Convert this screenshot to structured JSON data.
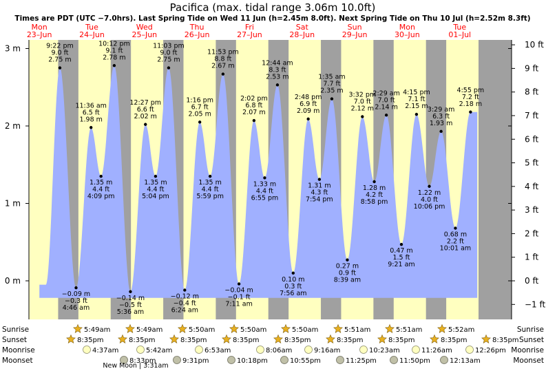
{
  "title": "Pacifica (max. tidal range 3.06m 10.0ft)",
  "subtitle": "Times are PDT (UTC −7.0hrs). Last Spring Tide on Wed 11 Jun (h=2.45m 8.0ft). Next Spring Tide on Thu 10 Jul (h=2.52m 8.3ft)",
  "colors": {
    "day": "#ffffc0",
    "night": "#a0a0a0",
    "water": "#a0b0ff",
    "red_text": "#ff0000",
    "sun_icon": "#e8b020",
    "moon_icon": "#ffffc0"
  },
  "chart_data": {
    "type": "area",
    "title": "Pacifica (max. tidal range 3.06m 10.0ft)",
    "y_left_ticks": [
      "3 m",
      "2 m",
      "1 m",
      "0 m"
    ],
    "y_right_ticks": [
      "10 ft",
      "9 ft",
      "8 ft",
      "7 ft",
      "6 ft",
      "5 ft",
      "4 ft",
      "3 ft",
      "2 ft",
      "1 ft",
      "0 ft",
      "−1 ft"
    ],
    "days": [
      {
        "dow": "Mon",
        "date": "23–Jun"
      },
      {
        "dow": "Tue",
        "date": "24–Jun"
      },
      {
        "dow": "Wed",
        "date": "25–Jun"
      },
      {
        "dow": "Thu",
        "date": "26–Jun"
      },
      {
        "dow": "Fri",
        "date": "27–Jun"
      },
      {
        "dow": "Sat",
        "date": "28–Jun"
      },
      {
        "dow": "Sun",
        "date": "29–Jun"
      },
      {
        "dow": "Mon",
        "date": "30–Jun"
      },
      {
        "dow": "Tue",
        "date": "01–Jul"
      }
    ],
    "series": [
      {
        "values": [
          {
            "time": "9:22 pm",
            "ft": "9.0 ft",
            "m": 2.75,
            "m_label": "2.75 m",
            "hour": 21.37,
            "high": true
          },
          {
            "time": "4:46 am",
            "ft": "−0.3 ft",
            "m": -0.09,
            "m_label": "−0.09 m",
            "hour": 28.77,
            "high": false
          },
          {
            "time": "11:36 am",
            "ft": "6.5 ft",
            "m": 1.98,
            "m_label": "1.98 m",
            "hour": 35.6,
            "high": true
          },
          {
            "time": "4:09 pm",
            "ft": "4.4 ft",
            "m": 1.35,
            "m_label": "1.35 m",
            "hour": 40.15,
            "high": false
          },
          {
            "time": "10:12 pm",
            "ft": "9.1 ft",
            "m": 2.78,
            "m_label": "2.78 m",
            "hour": 46.2,
            "high": true
          },
          {
            "time": "5:36 am",
            "ft": "−0.5 ft",
            "m": -0.14,
            "m_label": "−0.14 m",
            "hour": 53.6,
            "high": false
          },
          {
            "time": "12:27 pm",
            "ft": "6.6 ft",
            "m": 2.02,
            "m_label": "2.02 m",
            "hour": 60.45,
            "high": true
          },
          {
            "time": "5:04 pm",
            "ft": "4.4 ft",
            "m": 1.35,
            "m_label": "1.35 m",
            "hour": 65.07,
            "high": false
          },
          {
            "time": "11:03 pm",
            "ft": "9.0 ft",
            "m": 2.75,
            "m_label": "2.75 m",
            "hour": 71.05,
            "high": true
          },
          {
            "time": "6:24 am",
            "ft": "−0.4 ft",
            "m": -0.12,
            "m_label": "−0.12 m",
            "hour": 78.4,
            "high": false
          },
          {
            "time": "1:16 pm",
            "ft": "6.7 ft",
            "m": 2.05,
            "m_label": "2.05 m",
            "hour": 85.27,
            "high": true
          },
          {
            "time": "5:59 pm",
            "ft": "4.4 ft",
            "m": 1.35,
            "m_label": "1.35 m",
            "hour": 89.98,
            "high": false
          },
          {
            "time": "11:53 pm",
            "ft": "8.8 ft",
            "m": 2.67,
            "m_label": "2.67 m",
            "hour": 95.88,
            "high": true
          },
          {
            "time": "7:11 am",
            "ft": "−0.1 ft",
            "m": -0.04,
            "m_label": "−0.04 m",
            "hour": 103.18,
            "high": false
          },
          {
            "time": "2:02 pm",
            "ft": "6.8 ft",
            "m": 2.07,
            "m_label": "2.07 m",
            "hour": 110.03,
            "high": true
          },
          {
            "time": "6:55 pm",
            "ft": "4.4 ft",
            "m": 1.33,
            "m_label": "1.33 m",
            "hour": 114.92,
            "high": false
          },
          {
            "time": "12:44 am",
            "ft": "8.3 ft",
            "m": 2.53,
            "m_label": "2.53 m",
            "hour": 120.73,
            "high": true
          },
          {
            "time": "7:56 am",
            "ft": "0.3 ft",
            "m": 0.1,
            "m_label": "0.10 m",
            "hour": 127.93,
            "high": false
          },
          {
            "time": "2:48 pm",
            "ft": "6.9 ft",
            "m": 2.09,
            "m_label": "2.09 m",
            "hour": 134.8,
            "high": true
          },
          {
            "time": "7:54 pm",
            "ft": "4.3 ft",
            "m": 1.31,
            "m_label": "1.31 m",
            "hour": 139.9,
            "high": false
          },
          {
            "time": "1:35 am",
            "ft": "7.7 ft",
            "m": 2.35,
            "m_label": "2.35 m",
            "hour": 145.58,
            "high": true
          },
          {
            "time": "8:39 am",
            "ft": "0.9 ft",
            "m": 0.27,
            "m_label": "0.27 m",
            "hour": 152.65,
            "high": false
          },
          {
            "time": "3:32 pm",
            "ft": "7.0 ft",
            "m": 2.12,
            "m_label": "2.12 m",
            "hour": 159.53,
            "high": true
          },
          {
            "time": "8:58 pm",
            "ft": "4.2 ft",
            "m": 1.28,
            "m_label": "1.28 m",
            "hour": 164.97,
            "high": false
          },
          {
            "time": "2:29 am",
            "ft": "7.0 ft",
            "m": 2.14,
            "m_label": "2.14 m",
            "hour": 170.48,
            "high": true
          },
          {
            "time": "9:21 am",
            "ft": "1.5 ft",
            "m": 0.47,
            "m_label": "0.47 m",
            "hour": 177.35,
            "high": false
          },
          {
            "time": "4:15 pm",
            "ft": "7.1 ft",
            "m": 2.15,
            "m_label": "2.15 m",
            "hour": 184.25,
            "high": true
          },
          {
            "time": "10:06 pm",
            "ft": "4.0 ft",
            "m": 1.22,
            "m_label": "1.22 m",
            "hour": 190.1,
            "high": false
          },
          {
            "time": "3:29 am",
            "ft": "6.3 ft",
            "m": 1.93,
            "m_label": "1.93 m",
            "hour": 195.48,
            "high": true
          },
          {
            "time": "10:01 am",
            "ft": "2.2 ft",
            "m": 0.68,
            "m_label": "0.68 m",
            "hour": 202.02,
            "high": false
          },
          {
            "time": "4:55 pm",
            "ft": "7.2 ft",
            "m": 2.18,
            "m_label": "2.18 m",
            "hour": 208.92,
            "high": true
          }
        ]
      }
    ],
    "astro_labels": [
      "Sunrise",
      "Sunset",
      "Moonrise",
      "Moonset"
    ],
    "sunrise": [
      "5:49am",
      "5:49am",
      "5:50am",
      "5:50am",
      "5:50am",
      "5:51am",
      "5:51am",
      "5:52am"
    ],
    "sunset": [
      "8:35pm",
      "8:35pm",
      "8:35pm",
      "8:35pm",
      "8:35pm",
      "8:35pm",
      "8:35pm",
      "8:35pm",
      "8:35pm"
    ],
    "moonrise": [
      "4:37am",
      "5:42am",
      "6:53am",
      "8:06am",
      "9:16am",
      "10:23am",
      "11:26am",
      "12:26pm"
    ],
    "moonset": [
      "8:33pm",
      "9:31pm",
      "10:18pm",
      "10:55pm",
      "11:25pm",
      "11:50pm",
      "12:13am"
    ],
    "new_moon": "New Moon | 3:31am"
  }
}
